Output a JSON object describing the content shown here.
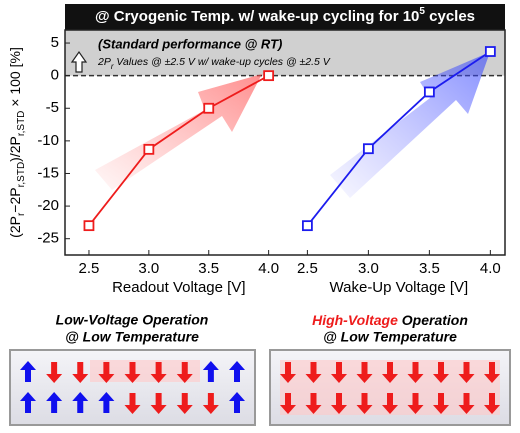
{
  "banner": {
    "parts": [
      "@ Cryogenic Temp. w/ wake-up cycling for 10",
      "5",
      " cycles"
    ]
  },
  "ylabel": {
    "parts": [
      "(2P",
      "r",
      "−2P",
      "r,STD",
      ")/2P",
      "r,STD",
      " × 100 [%]"
    ]
  },
  "annotation": {
    "title": "(Standard performance @ RT)",
    "parts": [
      "2P",
      "r",
      " Values @ ±2.5 V w/ wake-up cycles @ ±2.5 V"
    ]
  },
  "chart_data": [
    {
      "type": "line",
      "xlabel": "Readout Voltage [V]",
      "color": "#ee1c1c",
      "x": [
        2.5,
        3,
        3.5,
        4
      ],
      "values": [
        -23,
        -11.3,
        -5,
        0
      ],
      "xlim": [
        2.3,
        4.12
      ],
      "xticks": [
        2.5,
        {
          "value": 3,
          "label": "3.0"
        },
        3.5,
        {
          "value": 4,
          "label": "4.0"
        }
      ],
      "ylim": [
        -27.5,
        7
      ],
      "yticks": [
        5,
        0,
        -5,
        -10,
        -15,
        -20,
        -25
      ]
    },
    {
      "type": "line",
      "xlabel": "Wake-Up Voltage [V]",
      "color": "#1c1cee",
      "x": [
        2.5,
        3,
        3.5,
        4
      ],
      "values": [
        -23,
        -11.2,
        -2.5,
        3.7
      ],
      "xlim": [
        2.3,
        4.12
      ],
      "xticks": [
        2.5,
        {
          "value": 3,
          "label": "3.0"
        },
        3.5,
        {
          "value": 4,
          "label": "4.0"
        }
      ],
      "ylim": [
        -27.5,
        7
      ],
      "yticks": [
        5,
        0,
        -5,
        -10,
        -15,
        -20,
        -25
      ]
    }
  ],
  "diagrams": [
    {
      "line1": "Low-Voltage Operation",
      "line2": "@ Low Temperature"
    },
    {
      "highlight": "High-Voltage",
      "line1": " Operation",
      "line2": "@ Low Temperature"
    }
  ]
}
